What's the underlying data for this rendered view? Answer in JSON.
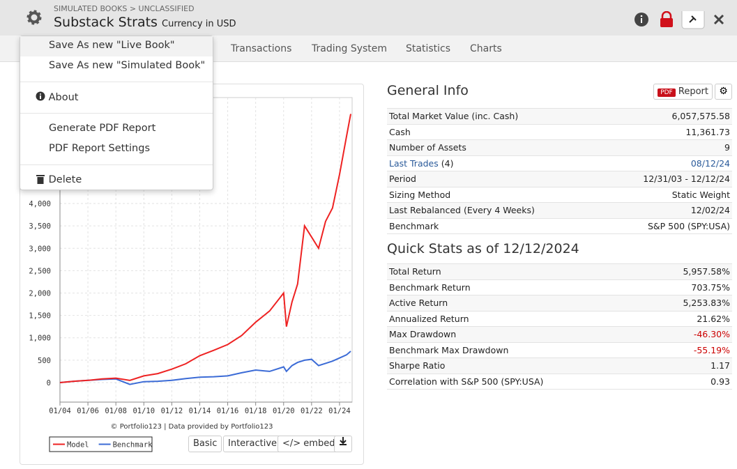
{
  "header": {
    "breadcrumb": "SIMULATED BOOKS > UNCLASSIFIED",
    "title": "Substack Strats",
    "currency": "Currency in USD"
  },
  "tabs": [
    "Transactions",
    "Trading System",
    "Statistics",
    "Charts"
  ],
  "menu": {
    "items": [
      "Save As new \"Live Book\"",
      "Save As new \"Simulated Book\"",
      "About",
      "Generate PDF Report",
      "PDF Report Settings",
      "Delete"
    ]
  },
  "general_info": {
    "title": "General Info",
    "pdf_badge": "PDF",
    "report_button": "Report",
    "rows": [
      {
        "label": "Total Market Value (inc. Cash)",
        "value": "6,057,575.58"
      },
      {
        "label": "Cash",
        "value": "11,361.73"
      },
      {
        "label": "Number of Assets",
        "value": "9"
      },
      {
        "label": "Last Trades",
        "note": "(4)",
        "value": "08/12/24"
      },
      {
        "label": "Period",
        "value": "12/31/03 - 12/12/24"
      },
      {
        "label": "Sizing Method",
        "value": "Static Weight"
      },
      {
        "label": "Last Rebalanced (Every 4 Weeks)",
        "value": "12/02/24"
      },
      {
        "label": "Benchmark",
        "value": "S&P 500 (SPY:USA)"
      }
    ]
  },
  "quick_stats": {
    "title": "Quick Stats as of 12/12/2024",
    "rows": [
      {
        "label": "Total Return",
        "value": "5,957.58%"
      },
      {
        "label": "Benchmark Return",
        "value": "703.75%"
      },
      {
        "label": "Active Return",
        "value": "5,253.83%"
      },
      {
        "label": "Annualized Return",
        "value": "21.62%"
      },
      {
        "label": "Max Drawdown",
        "value": "-46.30%"
      },
      {
        "label": "Benchmark Max Drawdown",
        "value": "-55.19%"
      },
      {
        "label": "Sharpe Ratio",
        "value": "1.17"
      },
      {
        "label": "Correlation with S&P 500 (SPY:USA)",
        "value": "0.93"
      }
    ]
  },
  "chart_footer": {
    "credit": "© Portfolio123 | Data provided by Portfolio123",
    "buttons": [
      "Basic",
      "Interactive",
      "</> embed"
    ]
  },
  "chart_data": {
    "type": "line",
    "x": [
      2004,
      2005,
      2006,
      2007,
      2008,
      2009,
      2010,
      2011,
      2012,
      2013,
      2014,
      2015,
      2016,
      2017,
      2018,
      2019,
      2020,
      2020.2,
      2020.6,
      2021,
      2021.5,
      2022,
      2022.5,
      2023,
      2023.5,
      2024,
      2024.5,
      2024.8
    ],
    "series": [
      {
        "name": "Model",
        "color": "#ee2222",
        "values": [
          0,
          30,
          50,
          80,
          100,
          50,
          150,
          200,
          300,
          420,
          600,
          720,
          850,
          1050,
          1350,
          1600,
          2000,
          1250,
          1800,
          2200,
          3500,
          3250,
          3000,
          3600,
          3900,
          4650,
          5500,
          6000
        ]
      },
      {
        "name": "Benchmark",
        "color": "#3b6bd6",
        "values": [
          0,
          30,
          50,
          70,
          80,
          -40,
          20,
          30,
          50,
          90,
          120,
          130,
          150,
          220,
          280,
          250,
          350,
          250,
          380,
          450,
          500,
          520,
          380,
          430,
          480,
          550,
          620,
          700
        ]
      }
    ],
    "xlim": [
      2004,
      2024.9
    ],
    "xticks": [
      {
        "value": 2004,
        "label": "01/04"
      },
      {
        "value": 2006,
        "label": "01/06"
      },
      {
        "value": 2008,
        "label": "01/08"
      },
      {
        "value": 2010,
        "label": "01/10"
      },
      {
        "value": 2012,
        "label": "01/12"
      },
      {
        "value": 2014,
        "label": "01/14"
      },
      {
        "value": 2016,
        "label": "01/16"
      },
      {
        "value": 2018,
        "label": "01/18"
      },
      {
        "value": 2020,
        "label": "01/20"
      },
      {
        "value": 2022,
        "label": "01/22"
      },
      {
        "value": 2024,
        "label": "01/24"
      }
    ],
    "ylim": [
      -436,
      6366
    ],
    "yticks": [
      0,
      500,
      {
        "value": 1000,
        "label": "1,000"
      },
      {
        "value": 1500,
        "label": "1,500"
      },
      {
        "value": 2000,
        "label": "2,000"
      },
      {
        "value": 2500,
        "label": "2,500"
      },
      {
        "value": 3000,
        "label": "3,000"
      },
      {
        "value": 3500,
        "label": "3,500"
      },
      {
        "value": 4000,
        "label": "4,000"
      }
    ],
    "grid": true
  }
}
